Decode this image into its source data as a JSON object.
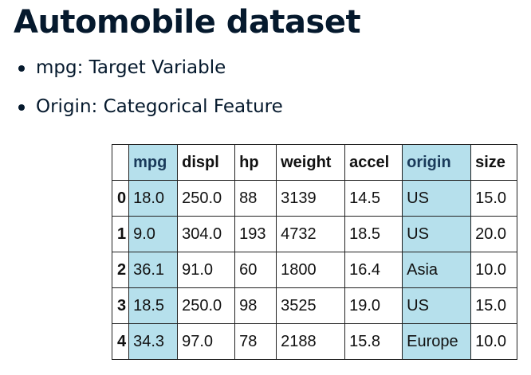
{
  "title": "Automobile dataset",
  "bullets": [
    "mpg: Target Variable",
    "Origin: Categorical Feature"
  ],
  "table": {
    "index_header": "",
    "columns": [
      "mpg",
      "displ",
      "hp",
      "weight",
      "accel",
      "origin",
      "size"
    ],
    "highlighted_columns": [
      "mpg",
      "origin"
    ],
    "highlight_color": "#b6e0ec",
    "rows": [
      {
        "index": "0",
        "cells": [
          "18.0",
          "250.0",
          "88",
          "3139",
          "14.5",
          "US",
          "15.0"
        ]
      },
      {
        "index": "1",
        "cells": [
          "9.0",
          "304.0",
          "193",
          "4732",
          "18.5",
          "US",
          "20.0"
        ]
      },
      {
        "index": "2",
        "cells": [
          "36.1",
          "91.0",
          "60",
          "1800",
          "16.4",
          "Asia",
          "10.0"
        ]
      },
      {
        "index": "3",
        "cells": [
          "18.5",
          "250.0",
          "98",
          "3525",
          "19.0",
          "US",
          "15.0"
        ]
      },
      {
        "index": "4",
        "cells": [
          "34.3",
          "97.0",
          "78",
          "2188",
          "15.8",
          "Europe",
          "10.0"
        ]
      }
    ]
  }
}
